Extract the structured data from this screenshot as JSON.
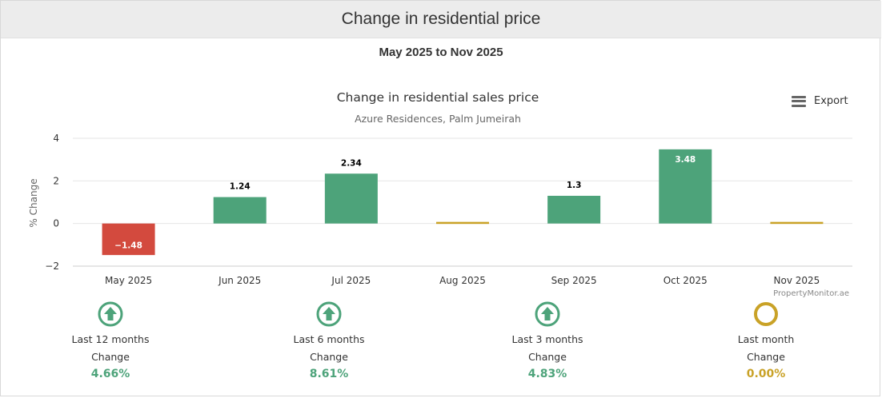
{
  "header": {
    "title": "Change in residential price"
  },
  "date_range": "May 2025 to Nov 2025",
  "export": {
    "label": "Export",
    "icon": "menu-icon"
  },
  "credit": "PropertyMonitor.ae",
  "colors": {
    "positive": "#4da37a",
    "negative": "#d34a3e",
    "neutral": "#c9a227",
    "up_icon": "#4da37a",
    "neutral_icon": "#c9a227"
  },
  "chart_data": {
    "type": "bar",
    "title": "Change in residential sales price",
    "subtitle": "Azure Residences, Palm Jumeirah",
    "xlabel": "",
    "ylabel": "% Change",
    "ylim": [
      -2,
      4
    ],
    "yticks": [
      "−2",
      "0",
      "2",
      "4"
    ],
    "ytick_values": [
      -2,
      0,
      2,
      4
    ],
    "categories": [
      "May 2025",
      "Jun 2025",
      "Jul 2025",
      "Aug 2025",
      "Sep 2025",
      "Oct 2025",
      "Nov 2025"
    ],
    "values": [
      -1.48,
      1.24,
      2.34,
      0,
      1.3,
      3.48,
      0
    ],
    "data_labels": [
      "−1.48",
      "1.24",
      "2.34",
      "",
      "1.3",
      "3.48",
      ""
    ],
    "grid": true
  },
  "stats": [
    {
      "period": "Last 12 months",
      "change_label": "Change",
      "value": "4.66%",
      "trend": "up"
    },
    {
      "period": "Last 6 months",
      "change_label": "Change",
      "value": "8.61%",
      "trend": "up"
    },
    {
      "period": "Last 3 months",
      "change_label": "Change",
      "value": "4.83%",
      "trend": "up"
    },
    {
      "period": "Last month",
      "change_label": "Change",
      "value": "0.00%",
      "trend": "neutral"
    }
  ]
}
